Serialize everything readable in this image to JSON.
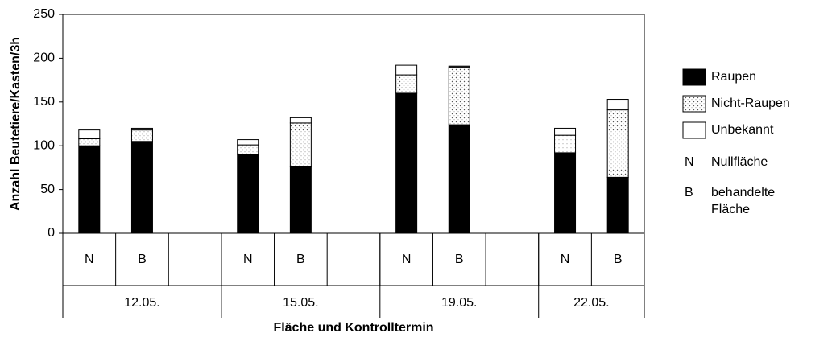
{
  "chart_data": {
    "type": "stacked_bar",
    "y_label": "Anzahl Beutetiere/Kasten/3h",
    "x_label": "Fläche und Kontrolltermin",
    "categories": [
      "N",
      "B",
      null,
      "N",
      "B",
      null,
      "N",
      "B",
      null,
      "N",
      "B"
    ],
    "groups": [
      {
        "label": "12.05.",
        "span": 3
      },
      {
        "label": "15.05.",
        "span": 3
      },
      {
        "label": "19.05.",
        "span": 3
      },
      {
        "label": "22.05.",
        "span": 2
      }
    ],
    "series": [
      {
        "name": "Raupen",
        "color": "#000000",
        "values": [
          100,
          105,
          null,
          90,
          76,
          null,
          160,
          124,
          null,
          92,
          64
        ]
      },
      {
        "name": "Nicht-Raupen",
        "color": "#ffffff",
        "pattern": "dots",
        "values": [
          8,
          13,
          null,
          11,
          50,
          null,
          21,
          66,
          null,
          20,
          77
        ]
      },
      {
        "name": "Unbekannt",
        "color": "#ffffff",
        "values": [
          10,
          2,
          null,
          6,
          6,
          null,
          11,
          1,
          null,
          8,
          12
        ]
      }
    ],
    "legend_notes": [
      {
        "key": "N",
        "lines": [
          "Nullfläche"
        ]
      },
      {
        "key": "B",
        "lines": [
          "behandelte",
          "Fläche"
        ]
      }
    ],
    "ylim": [
      0,
      250
    ],
    "yticks": [
      0,
      50,
      100,
      150,
      200,
      250
    ]
  }
}
